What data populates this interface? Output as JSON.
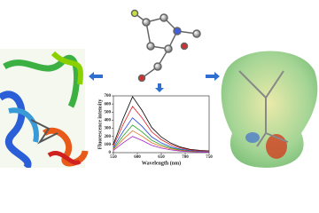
{
  "chart_data": {
    "type": "line",
    "x_label": "Wavelength (nm)",
    "y_label": "Fluorescence intensity",
    "x": [
      550,
      570,
      590,
      610,
      630,
      650,
      670,
      690,
      710,
      730,
      750
    ],
    "series": [
      {
        "color": "#000000",
        "values": [
          104,
          414,
          690,
          518,
          311,
          193,
          117,
          69,
          41,
          28,
          21
        ]
      },
      {
        "color": "#e02020",
        "values": [
          86,
          342,
          570,
          428,
          257,
          160,
          97,
          57,
          34,
          23,
          17
        ]
      },
      {
        "color": "#2040e0",
        "values": [
          65,
          258,
          430,
          323,
          194,
          120,
          73,
          43,
          26,
          17,
          13
        ]
      },
      {
        "color": "#20a020",
        "values": [
          51,
          204,
          340,
          255,
          153,
          95,
          58,
          34,
          20,
          14,
          10
        ]
      },
      {
        "color": "#e07020",
        "values": [
          41,
          162,
          270,
          203,
          122,
          76,
          46,
          27,
          16,
          11,
          8
        ]
      },
      {
        "color": "#a020c0",
        "values": [
          30,
          120,
          200,
          150,
          90,
          56,
          34,
          20,
          12,
          8,
          6
        ]
      }
    ],
    "xlim": [
      550,
      750
    ],
    "xticks": [
      550,
      600,
      650,
      700,
      750
    ],
    "ylim": [
      0,
      700
    ],
    "yticks": [
      0,
      100,
      200,
      300,
      400,
      500,
      600,
      700
    ]
  }
}
